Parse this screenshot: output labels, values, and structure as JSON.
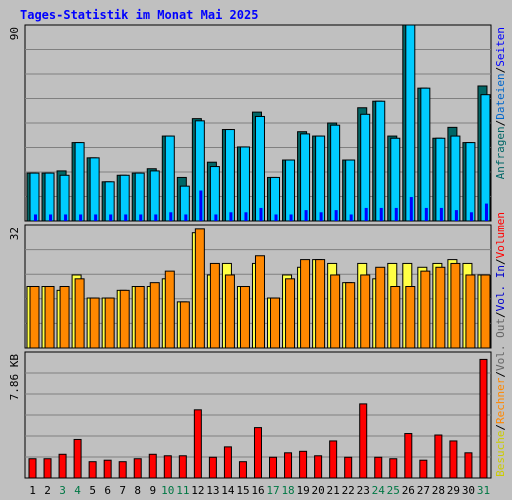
{
  "title": "Tages-Statistik im Monat Mai 2025",
  "colors": {
    "background": "#c0c0c0",
    "frame": "#000000",
    "grid": "#808080",
    "anfragen": "#006666",
    "dateien": "#00ccff",
    "seiten": "#0000ff",
    "besuche": "#ffff44",
    "rechner": "#ff8800",
    "volumen": "#ff0000",
    "weekday_label": "#000000",
    "weekend_label": "#007744",
    "title": "#0000ff"
  },
  "chart_data": [
    {
      "type": "bar",
      "name": "top",
      "ylim": [
        0,
        90
      ],
      "ytick_label": "90",
      "legend": [
        {
          "text": "Anfragen",
          "color": "#006666"
        },
        {
          "text": "/",
          "color": "#000000"
        },
        {
          "text": "Dateien",
          "color": "#0066cc"
        },
        {
          "text": "/",
          "color": "#000000"
        },
        {
          "text": "Seiten",
          "color": "#0000ff"
        }
      ],
      "series": [
        {
          "name": "Anfragen",
          "values": [
            22,
            22,
            23,
            36,
            29,
            18,
            21,
            22,
            24,
            39,
            20,
            47,
            27,
            42,
            34,
            50,
            20,
            28,
            41,
            39,
            45,
            28,
            52,
            55,
            39,
            90,
            61,
            38,
            43,
            36,
            62
          ]
        },
        {
          "name": "Dateien",
          "values": [
            22,
            22,
            21,
            36,
            29,
            18,
            21,
            22,
            23,
            39,
            16,
            46,
            25,
            42,
            34,
            48,
            20,
            28,
            40,
            39,
            44,
            28,
            49,
            55,
            38,
            90,
            61,
            38,
            39,
            36,
            58
          ]
        },
        {
          "name": "Seiten",
          "values": [
            3,
            3,
            3,
            3,
            3,
            3,
            3,
            3,
            3,
            4,
            3,
            14,
            3,
            4,
            4,
            6,
            3,
            3,
            5,
            4,
            5,
            3,
            6,
            6,
            6,
            11,
            6,
            6,
            5,
            4,
            8
          ]
        }
      ]
    },
    {
      "type": "bar",
      "name": "middle",
      "ylim": [
        0,
        32
      ],
      "ytick_label": "32",
      "legend": [
        {
          "text": "Besuche",
          "color": "#cccc00"
        },
        {
          "text": "/",
          "color": "#000000"
        },
        {
          "text": "Rechner",
          "color": "#ff8800"
        },
        {
          "text": "/",
          "color": "#000000"
        },
        {
          "text": "Vol. Out",
          "color": "#666666"
        },
        {
          "text": "/",
          "color": "#000000"
        },
        {
          "text": "Vol. In",
          "color": "#0000cc"
        },
        {
          "text": "/",
          "color": "#000000"
        },
        {
          "text": "Volumen",
          "color": "#ff0000"
        }
      ],
      "series": [
        {
          "name": "Besuche",
          "values": [
            16,
            16,
            15,
            19,
            13,
            13,
            15,
            16,
            16,
            18,
            12,
            30,
            19,
            22,
            16,
            22,
            13,
            19,
            21,
            23,
            22,
            17,
            22,
            18,
            22,
            22,
            21,
            22,
            23,
            22,
            19
          ]
        },
        {
          "name": "Rechner",
          "values": [
            16,
            16,
            16,
            18,
            13,
            13,
            15,
            16,
            17,
            20,
            12,
            31,
            22,
            19,
            16,
            24,
            13,
            18,
            23,
            23,
            19,
            17,
            19,
            21,
            16,
            16,
            20,
            21,
            22,
            19,
            19
          ]
        }
      ]
    },
    {
      "type": "bar",
      "name": "bottom",
      "ylim": [
        0,
        8.5
      ],
      "ytick_label": "7.86 KB",
      "gridline_value": 7.86,
      "series": [
        {
          "name": "Volumen",
          "values": [
            1.3,
            1.3,
            1.6,
            2.6,
            1.1,
            1.2,
            1.1,
            1.3,
            1.6,
            1.5,
            1.5,
            4.6,
            1.4,
            2.1,
            1.1,
            3.4,
            1.4,
            1.7,
            1.8,
            1.5,
            2.5,
            1.4,
            5.0,
            1.4,
            1.3,
            3.0,
            1.2,
            2.9,
            2.5,
            1.7,
            8.0
          ]
        }
      ],
      "categories": [
        "1",
        "2",
        "3",
        "4",
        "5",
        "6",
        "7",
        "8",
        "9",
        "10",
        "11",
        "12",
        "13",
        "14",
        "15",
        "16",
        "17",
        "18",
        "19",
        "20",
        "21",
        "22",
        "23",
        "24",
        "25",
        "26",
        "27",
        "28",
        "29",
        "30",
        "31"
      ],
      "weekend_days": [
        3,
        4,
        10,
        11,
        17,
        18,
        24,
        25,
        31
      ]
    }
  ]
}
